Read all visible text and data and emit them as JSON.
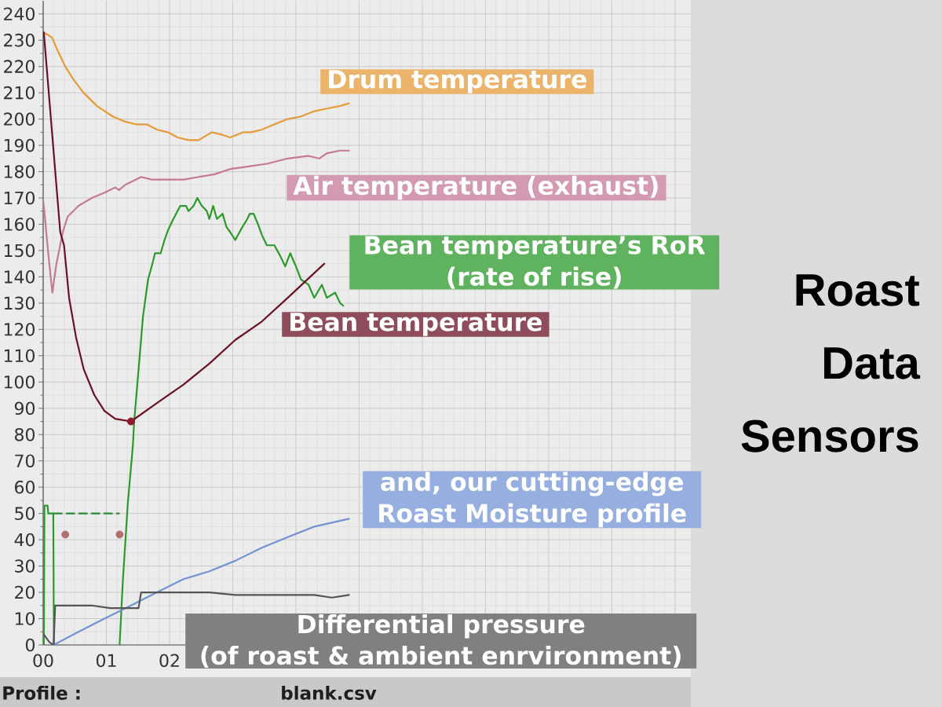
{
  "chart_data": {
    "type": "line",
    "title": "Roast Data Sensors",
    "annotations": [
      "Profile :",
      "blank.csv"
    ],
    "xlim": [
      0,
      10.25
    ],
    "xticks": [
      {
        "value": 0,
        "label": "00"
      },
      {
        "value": 1,
        "label": "01"
      },
      {
        "value": 2,
        "label": "02"
      },
      {
        "value": 3,
        "label": null
      },
      {
        "value": 4,
        "label": null
      },
      {
        "value": 5,
        "label": null
      },
      {
        "value": 6,
        "label": null
      },
      {
        "value": 7,
        "label": null
      },
      {
        "value": 8,
        "label": null
      },
      {
        "value": 9,
        "label": null
      },
      {
        "value": 10,
        "label": null
      }
    ],
    "ylim": [
      0,
      245
    ],
    "yticks": [
      0,
      10,
      20,
      30,
      40,
      50,
      60,
      70,
      80,
      90,
      100,
      110,
      120,
      130,
      140,
      150,
      160,
      170,
      180,
      190,
      200,
      210,
      220,
      230,
      240
    ],
    "grid": true,
    "marker": "none",
    "line_style": "solid",
    "series": [
      {
        "name": "Drum temperature",
        "color": "#e59b38",
        "x": [
          0,
          0.08,
          0.14,
          0.23,
          0.35,
          0.48,
          0.64,
          0.85,
          1.1,
          1.3,
          1.47,
          1.64,
          1.8,
          1.97,
          2.13,
          2.3,
          2.46,
          2.67,
          2.84,
          2.96,
          3.17,
          3.29,
          3.46,
          3.66,
          3.87,
          4.08,
          4.29,
          4.49,
          4.7,
          4.84
        ],
        "values": [
          233,
          232,
          231,
          226,
          220,
          215,
          210,
          205,
          201,
          199,
          198,
          198,
          196,
          195,
          193,
          192,
          192,
          195,
          194,
          193,
          195,
          195,
          196,
          198,
          200,
          201,
          203,
          204,
          205,
          206
        ]
      },
      {
        "name": "Air temperature (exhaust)",
        "color": "#c57898",
        "x": [
          0,
          0.03,
          0.08,
          0.145,
          0.21,
          0.31,
          0.39,
          0.56,
          0.77,
          0.97,
          1.14,
          1.2,
          1.3,
          1.55,
          1.72,
          1.97,
          2.22,
          2.46,
          2.71,
          2.96,
          3.25,
          3.54,
          3.87,
          4.2,
          4.37,
          4.49,
          4.7,
          4.84
        ],
        "values": [
          169,
          162,
          149,
          134,
          145,
          157,
          163,
          167,
          170,
          172,
          174,
          173,
          175,
          178,
          177,
          177,
          177,
          178,
          179,
          181,
          182,
          183,
          185,
          186,
          185,
          187,
          188,
          188
        ]
      },
      {
        "name": "Bean temperature’s RoR\n(rate of rise)",
        "color": "#2a9a2a",
        "x": [
          0.01,
          0.02,
          0.07,
          0.08,
          0.16,
          0.17,
          0.6,
          1.21,
          1.26,
          1.34,
          1.42,
          1.44,
          1.5,
          1.58,
          1.66,
          1.74,
          1.77,
          1.86,
          1.92,
          1.98,
          2.06,
          2.17,
          2.26,
          2.3,
          2.38,
          2.44,
          2.51,
          2.59,
          2.63,
          2.69,
          2.75,
          2.84,
          2.9,
          2.96,
          3.04,
          3.13,
          3.23,
          3.27,
          3.33,
          3.4,
          3.46,
          3.54,
          3.66,
          3.75,
          3.83,
          3.91,
          4.0,
          4.08,
          4.2,
          4.29,
          4.41,
          4.49,
          4.62,
          4.7,
          4.75
        ],
        "values": [
          0,
          53,
          53,
          50,
          50,
          0,
          null,
          0,
          24,
          54,
          76,
          85,
          102,
          125,
          139,
          146,
          149,
          149,
          154,
          158,
          162,
          167,
          167,
          165,
          167,
          170,
          167,
          165,
          162,
          167,
          162,
          164,
          159,
          157,
          154,
          158,
          162,
          164,
          164,
          160,
          156,
          152,
          152,
          148,
          144,
          149,
          144,
          139,
          137,
          132,
          137,
          132,
          134,
          130,
          129
        ]
      },
      {
        "name": "Bean temperature",
        "color": "#6a1124",
        "x": [
          0.01,
          0.27,
          0.33,
          0.41,
          0.52,
          0.64,
          0.81,
          0.97,
          1.14,
          1.39,
          1.8,
          2.22,
          2.63,
          3.04,
          3.46,
          3.87,
          4.45
        ],
        "values": [
          233,
          157,
          152,
          132,
          117,
          105,
          95,
          89,
          86,
          85,
          92,
          99,
          107,
          116,
          123,
          132,
          145
        ]
      },
      {
        "name": "and, our cutting-edge\nRoast Moisture profile",
        "color": "#7393d6",
        "x": [
          0.165,
          0.56,
          0.97,
          1.39,
          1.8,
          2.22,
          2.63,
          3.04,
          3.46,
          3.87,
          4.29,
          4.84
        ],
        "values": [
          0,
          5,
          10,
          15,
          20,
          25,
          28,
          32,
          37,
          41,
          45,
          48
        ]
      },
      {
        "name": "Differential pressure\n(of roast & ambient enrvironment)",
        "color": "#555555",
        "x": [
          0.01,
          0.1,
          0.165,
          0.19,
          0.77,
          1.06,
          1.26,
          1.51,
          1.55,
          1.8,
          2.22,
          2.63,
          3.04,
          3.46,
          3.87,
          4.29,
          4.57,
          4.84
        ],
        "values": [
          4,
          1,
          0,
          15,
          15,
          14,
          14,
          14,
          20,
          20,
          20,
          20,
          19,
          19,
          19,
          19,
          18,
          19
        ]
      },
      {
        "color": "#2e8b3a",
        "line_style": "dashed",
        "x": [
          0.17,
          1.2
        ],
        "values": [
          50,
          50
        ]
      },
      {
        "type": "scatter",
        "marker": "circle",
        "color": "#8b1a2a",
        "x": [
          1.39
        ],
        "values": [
          85
        ]
      },
      {
        "type": "scatter",
        "marker": "circle",
        "color": "#b07070",
        "x": [
          0.35,
          1.21
        ],
        "values": [
          42,
          42
        ]
      }
    ]
  }
}
